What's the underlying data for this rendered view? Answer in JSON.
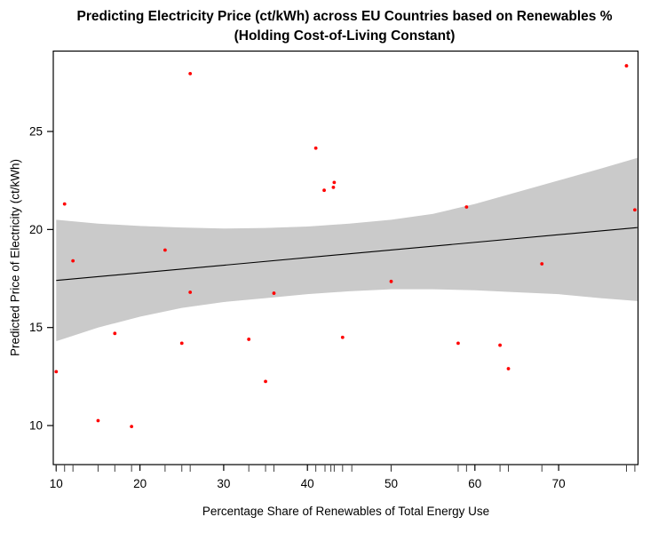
{
  "figure": {
    "title_line1": "Predicting Electricity Price (ct/kWh) across EU Countries based on Renewables %",
    "title_line2": "(Holding Cost-of-Living Constant)"
  },
  "chart_data": {
    "type": "scatter",
    "title": "Predicting Electricity Price (ct/kWh) across EU Countries based on Renewables % (Holding Cost-of-Living Constant)",
    "xlabel": "Percentage Share of Renewables of Total Energy Use",
    "ylabel": "Predicted Price of Electricity (ct/kWh)",
    "xlim": [
      9.6,
      79.5
    ],
    "ylim": [
      8.0,
      29.1
    ],
    "x_ticks": [
      10,
      20,
      30,
      40,
      50,
      60,
      70
    ],
    "y_ticks": [
      10,
      15,
      20,
      25
    ],
    "grid": false,
    "legend": null,
    "points": [
      {
        "x": 10,
        "y": 12.75
      },
      {
        "x": 11,
        "y": 21.3
      },
      {
        "x": 12,
        "y": 18.4
      },
      {
        "x": 15,
        "y": 10.25
      },
      {
        "x": 17,
        "y": 14.7
      },
      {
        "x": 19,
        "y": 9.95
      },
      {
        "x": 23,
        "y": 18.95
      },
      {
        "x": 25,
        "y": 14.2
      },
      {
        "x": 26,
        "y": 16.8
      },
      {
        "x": 26,
        "y": 27.95
      },
      {
        "x": 33,
        "y": 14.4
      },
      {
        "x": 35,
        "y": 12.25
      },
      {
        "x": 36,
        "y": 16.75
      },
      {
        "x": 41,
        "y": 24.15
      },
      {
        "x": 42,
        "y": 22.0
      },
      {
        "x": 43.1,
        "y": 22.15
      },
      {
        "x": 43.2,
        "y": 22.4
      },
      {
        "x": 44.2,
        "y": 14.5
      },
      {
        "x": 50,
        "y": 17.35
      },
      {
        "x": 58,
        "y": 14.2
      },
      {
        "x": 59,
        "y": 21.15
      },
      {
        "x": 63,
        "y": 14.1
      },
      {
        "x": 64,
        "y": 12.9
      },
      {
        "x": 68,
        "y": 18.25
      },
      {
        "x": 78.1,
        "y": 28.35
      },
      {
        "x": 79.1,
        "y": 21.0
      }
    ],
    "regression_line": {
      "x": [
        10,
        79.4
      ],
      "y": [
        17.4,
        20.1
      ]
    },
    "confidence_band": [
      {
        "x": 10,
        "lower": 14.3,
        "upper": 20.5
      },
      {
        "x": 15,
        "lower": 15.0,
        "upper": 20.3
      },
      {
        "x": 20,
        "lower": 15.55,
        "upper": 20.18
      },
      {
        "x": 25,
        "lower": 16.0,
        "upper": 20.1
      },
      {
        "x": 30,
        "lower": 16.3,
        "upper": 20.05
      },
      {
        "x": 35,
        "lower": 16.5,
        "upper": 20.08
      },
      {
        "x": 40,
        "lower": 16.7,
        "upper": 20.15
      },
      {
        "x": 45,
        "lower": 16.85,
        "upper": 20.3
      },
      {
        "x": 50,
        "lower": 16.95,
        "upper": 20.5
      },
      {
        "x": 55,
        "lower": 16.95,
        "upper": 20.8
      },
      {
        "x": 60,
        "lower": 16.9,
        "upper": 21.3
      },
      {
        "x": 65,
        "lower": 16.8,
        "upper": 21.9
      },
      {
        "x": 70,
        "lower": 16.7,
        "upper": 22.5
      },
      {
        "x": 75,
        "lower": 16.5,
        "upper": 23.1
      },
      {
        "x": 79.4,
        "lower": 16.35,
        "upper": 23.65
      }
    ],
    "rug_x": [
      10,
      11,
      12,
      15,
      17,
      19,
      23,
      25,
      26,
      33,
      35,
      36,
      41,
      42.1,
      42.8,
      43.2,
      44.2,
      45.3,
      50,
      58,
      59,
      63,
      64,
      68,
      78.1,
      79.1
    ],
    "colors": {
      "point": "#ff0000",
      "band": "#cacaca",
      "regression_line": "#000000",
      "axis": "#000000",
      "rug": "#404040"
    }
  }
}
